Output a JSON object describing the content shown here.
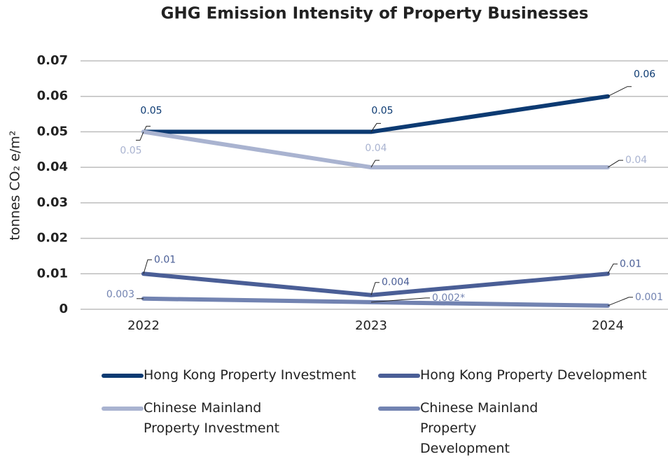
{
  "chart_data": {
    "type": "line",
    "title": "GHG Emission Intensity of Property Businesses",
    "y_label": "tonnes CO₂ e/m²",
    "categories": [
      "2022",
      "2023",
      "2024"
    ],
    "ylim": [
      0,
      0.07
    ],
    "yticks": [
      0,
      0.01,
      0.02,
      0.03,
      0.04,
      0.05,
      0.06,
      0.07
    ],
    "grid": true,
    "legend": "bottom",
    "series": [
      {
        "name": "Hong Kong Property Investment",
        "color": "#0c3a72",
        "values": [
          0.05,
          0.05,
          0.06
        ]
      },
      {
        "name": "Hong Kong Property Development",
        "color": "#4a5e96",
        "values": [
          0.01,
          0.004,
          0.01
        ]
      },
      {
        "name": "Chinese Mainland Property Investment",
        "color": "#a9b3d0",
        "values": [
          0.05,
          0.04,
          0.04
        ]
      },
      {
        "name": "Chinese Mainland Property Development",
        "color": "#7283b1",
        "values": [
          0.003,
          0.002,
          0.001
        ],
        "value_labels": [
          "0.003",
          "0.002*",
          "0.001"
        ]
      }
    ]
  }
}
